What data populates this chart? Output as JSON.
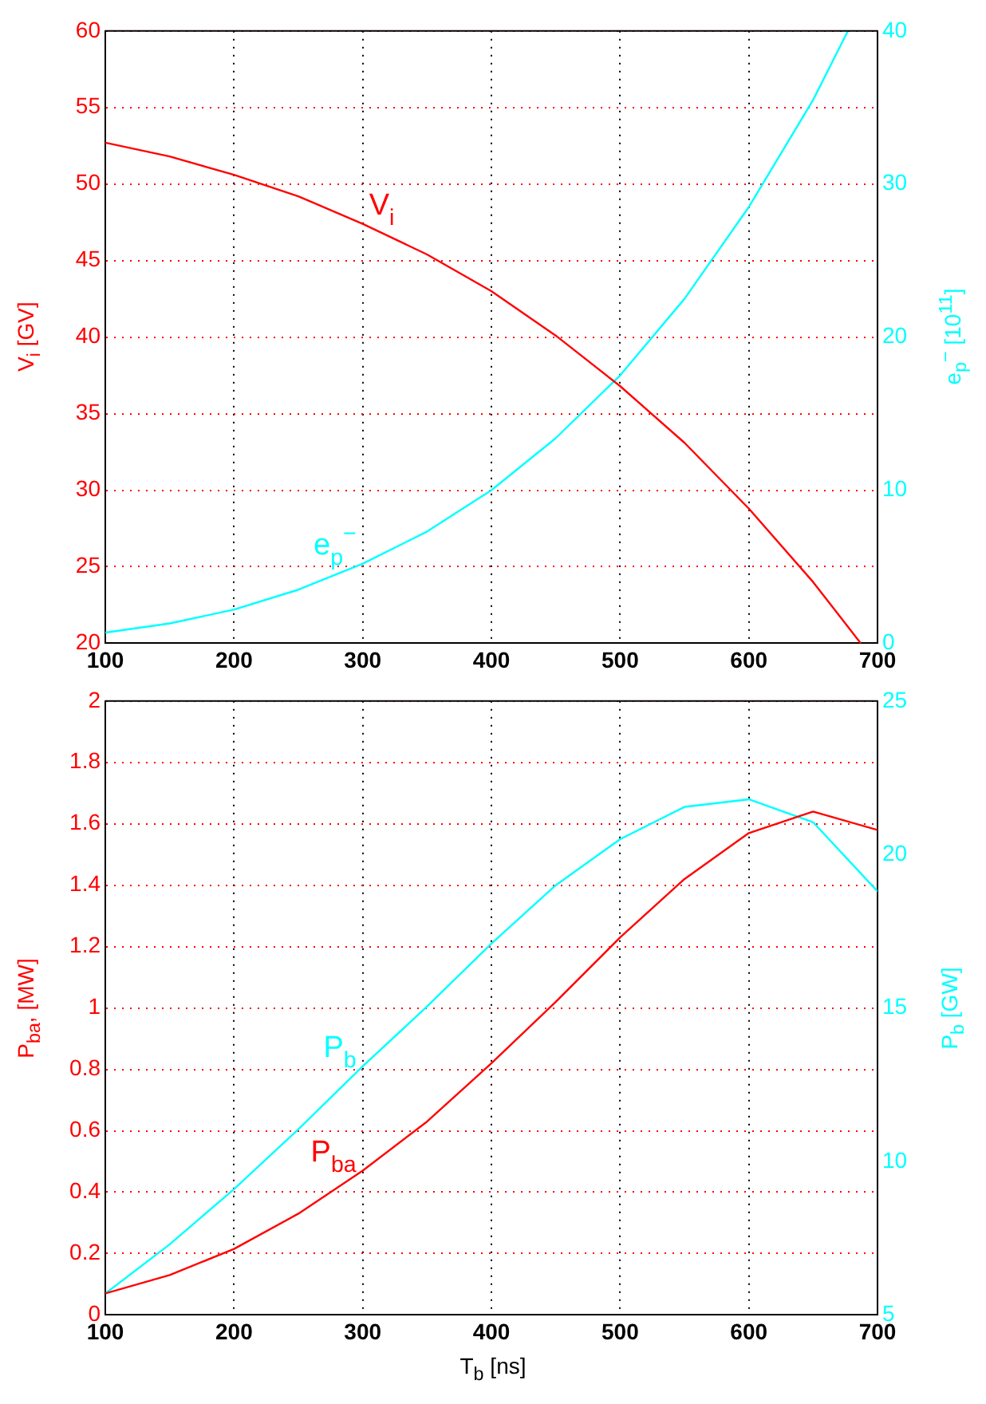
{
  "chart_data": [
    {
      "type": "line",
      "xlim": [
        100,
        700
      ],
      "xticks": [
        100,
        200,
        300,
        400,
        500,
        600,
        700
      ],
      "ylim": [
        20,
        60
      ],
      "yticks": [
        20,
        25,
        30,
        35,
        40,
        45,
        50,
        55,
        60
      ],
      "y2lim": [
        0,
        40
      ],
      "y2ticks": [
        0,
        10,
        20,
        30,
        40
      ],
      "ylabel": "V$_{i}$  [GV]",
      "y2label": "e$_{p}$$^{−}$ [10$^{11}$]",
      "grid": true,
      "legend": false,
      "series": [
        {
          "name": "V$_{i}$",
          "color": "#ff0000",
          "x": [
            100,
            150,
            200,
            250,
            300,
            350,
            400,
            450,
            500,
            550,
            600,
            650,
            687
          ],
          "values": [
            52.7,
            51.8,
            50.6,
            49.2,
            47.4,
            45.4,
            43.0,
            40.1,
            36.8,
            33.1,
            28.8,
            24.0,
            20
          ]
        },
        {
          "name": "e$_{p}$$^{−}$",
          "color": "#00ffff",
          "axis": "y2",
          "x": [
            100,
            150,
            200,
            250,
            300,
            350,
            400,
            450,
            500,
            550,
            600,
            650,
            677
          ],
          "values": [
            0.7,
            1.3,
            2.2,
            3.5,
            5.2,
            7.3,
            10.0,
            13.4,
            17.5,
            22.5,
            28.5,
            35.5,
            40
          ]
        }
      ]
    },
    {
      "type": "line",
      "xlim": [
        100,
        700
      ],
      "xticks": [
        100,
        200,
        300,
        400,
        500,
        600,
        700
      ],
      "ylim": [
        0,
        2
      ],
      "yticks": [
        0,
        0.2,
        0.4,
        0.6,
        0.8,
        1,
        1.2,
        1.4,
        1.6,
        1.8,
        2
      ],
      "y2lim": [
        5,
        25
      ],
      "y2ticks": [
        5,
        10,
        15,
        20,
        25
      ],
      "xlabel": "T$_{b}$  [ns]",
      "ylabel": "P$_{ba}$,  [MW]",
      "y2label": "P$_{b}$ [GW]",
      "grid": true,
      "legend": false,
      "series": [
        {
          "name": "P$_{ba}$",
          "color": "#ff0000",
          "x": [
            100,
            150,
            200,
            250,
            300,
            350,
            400,
            450,
            500,
            550,
            600,
            650,
            700
          ],
          "values": [
            0.07,
            0.13,
            0.215,
            0.33,
            0.47,
            0.63,
            0.82,
            1.02,
            1.23,
            1.42,
            1.57,
            1.64,
            1.58
          ]
        },
        {
          "name": "P$_{b}$",
          "color": "#00ffff",
          "axis": "y2",
          "x": [
            100,
            150,
            200,
            250,
            300,
            350,
            400,
            450,
            500,
            550,
            600,
            650,
            700
          ],
          "values": [
            5.7,
            7.3,
            9.1,
            11.05,
            13.1,
            15.05,
            17.1,
            19.0,
            20.5,
            21.55,
            21.8,
            21.05,
            18.8
          ]
        }
      ]
    }
  ]
}
